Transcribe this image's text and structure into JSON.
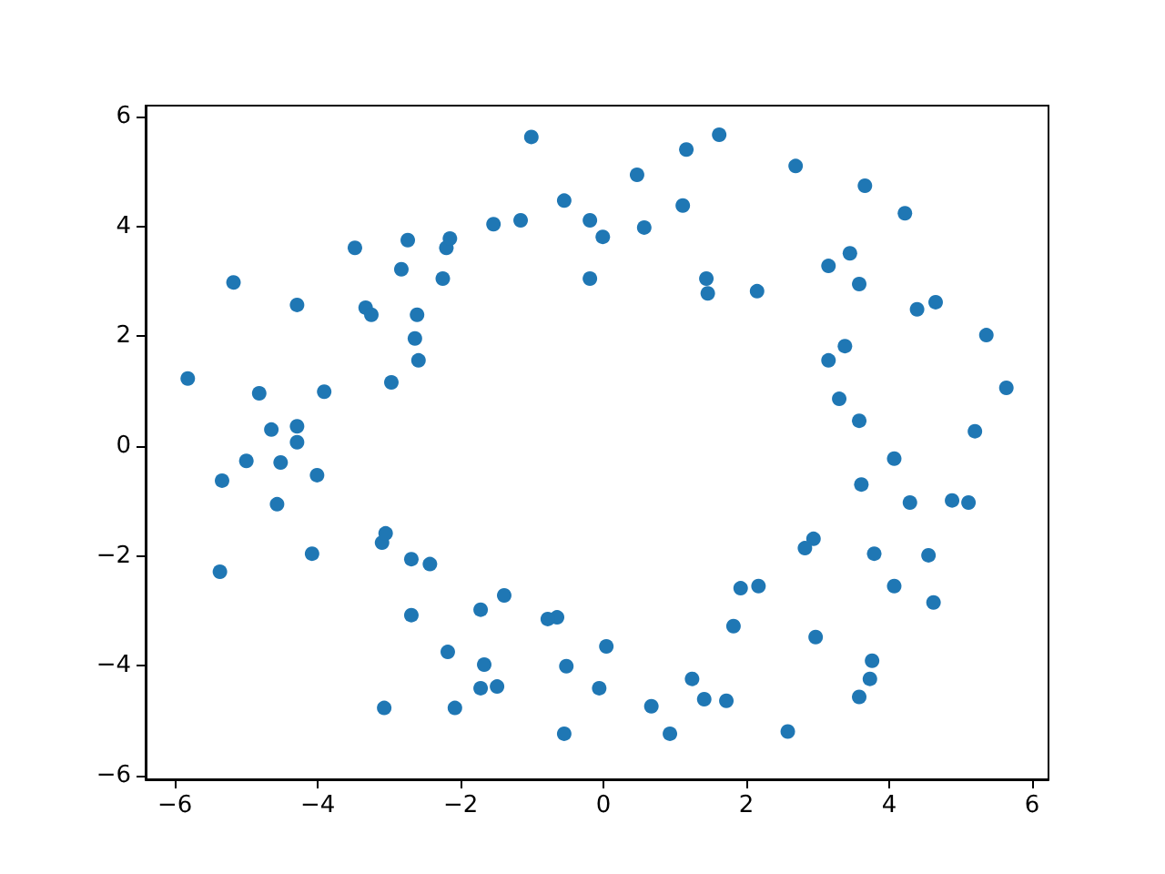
{
  "chart_data": {
    "type": "scatter",
    "marker": "circle",
    "grid": false,
    "xlim": [
      -6.41,
      6.23
    ],
    "ylim": [
      -6.07,
      6.2
    ],
    "xticks": [
      -6,
      -4,
      -2,
      0,
      2,
      4,
      6
    ],
    "yticks": [
      -6,
      -4,
      -2,
      0,
      2,
      4,
      6
    ],
    "series": [
      {
        "color": "#1f77b4",
        "x": [
          -5.82,
          -5.18,
          -4.82,
          -4.29,
          -4.65,
          -5.0,
          -5.34,
          -5.37,
          -4.29,
          -4.29,
          -4.52,
          -4.57,
          -4.01,
          -3.91,
          -4.08,
          -3.48,
          -3.33,
          -3.25,
          -2.97,
          -2.83,
          -2.74,
          -2.61,
          -2.64,
          -2.59,
          -2.25,
          -2.2,
          -2.15,
          -1.54,
          -1.16,
          -1.01,
          -0.55,
          -0.19,
          -0.01,
          -0.19,
          0.47,
          0.57,
          1.11,
          1.16,
          1.62,
          1.44,
          1.46,
          2.15,
          2.69,
          3.66,
          4.22,
          3.45,
          3.15,
          3.58,
          4.39,
          4.65,
          5.36,
          5.64,
          3.38,
          3.15,
          3.3,
          3.58,
          5.2,
          4.07,
          3.61,
          4.29,
          4.88,
          5.11,
          3.79,
          4.55,
          4.62,
          4.07,
          2.94,
          2.82,
          1.92,
          2.17,
          1.82,
          2.97,
          3.76,
          3.73,
          3.58,
          2.58,
          1.72,
          1.41,
          1.24,
          0.93,
          0.67,
          0.04,
          -0.06,
          -0.52,
          -0.55,
          -0.65,
          -0.78,
          -1.39,
          -1.72,
          -1.67,
          -1.72,
          -1.49,
          -2.08,
          -2.18,
          -2.43,
          -2.69,
          -2.69,
          -3.07,
          -3.1,
          -3.05
        ],
        "values": [
          1.23,
          2.98,
          0.96,
          2.57,
          0.3,
          -0.27,
          -0.63,
          -2.29,
          0.36,
          0.07,
          -0.3,
          -1.06,
          -0.53,
          0.99,
          -1.96,
          3.61,
          2.52,
          2.39,
          1.16,
          3.22,
          3.75,
          2.39,
          1.96,
          1.56,
          3.05,
          3.61,
          3.78,
          4.04,
          4.11,
          5.63,
          4.47,
          4.11,
          3.81,
          3.05,
          4.94,
          3.98,
          4.38,
          5.4,
          5.67,
          3.05,
          2.78,
          2.82,
          5.1,
          4.74,
          4.24,
          3.51,
          3.28,
          2.95,
          2.49,
          2.62,
          2.02,
          1.06,
          1.82,
          1.56,
          0.86,
          0.46,
          0.27,
          -0.23,
          -0.7,
          -1.03,
          -0.99,
          -1.03,
          -1.96,
          -1.99,
          -2.85,
          -2.55,
          -1.69,
          -1.86,
          -2.59,
          -2.55,
          -3.28,
          -3.48,
          -3.91,
          -4.24,
          -4.57,
          -5.2,
          -4.64,
          -4.61,
          -4.24,
          -5.24,
          -4.74,
          -3.65,
          -4.41,
          -4.01,
          -5.24,
          -3.12,
          -3.15,
          -2.72,
          -2.98,
          -3.98,
          -4.41,
          -4.38,
          -4.77,
          -3.75,
          -2.15,
          -2.06,
          -3.08,
          -4.77,
          -1.76,
          -1.59
        ]
      }
    ]
  }
}
